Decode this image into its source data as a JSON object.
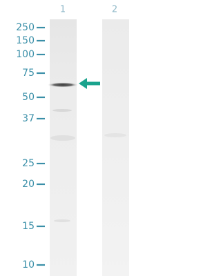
{
  "lanes": [
    "1",
    "2"
  ],
  "markers": [
    "250",
    "150",
    "100",
    "75",
    "50",
    "37",
    "25",
    "20",
    "15",
    "10"
  ]
}
